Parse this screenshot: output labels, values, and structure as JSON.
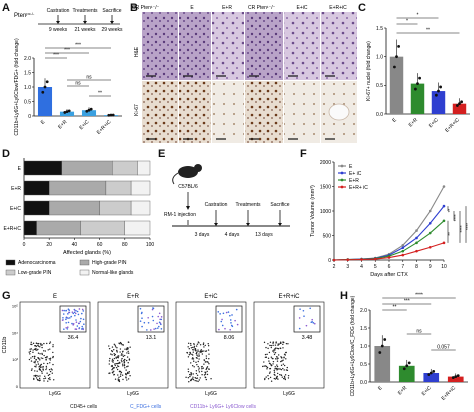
{
  "panel_labels": [
    "A",
    "B",
    "C",
    "D",
    "E",
    "F",
    "G",
    "H"
  ],
  "panelA": {
    "mouse": "Pten",
    "mouse_sup": "pc-/-",
    "timeline": [
      "Castration",
      "Treatments",
      "Sacrifice"
    ],
    "times": [
      "9 weeks",
      "21 weeks",
      "29 weeks"
    ],
    "ylabel": "CD11b+Ly6G+Ly6Clow/FDG+ (fold change)",
    "chart_data": {
      "type": "bar",
      "categories": [
        "E",
        "E+R",
        "E+iC",
        "E+R+iC"
      ],
      "values": [
        1.0,
        0.15,
        0.2,
        0.03
      ],
      "ylim": [
        0,
        2.0
      ],
      "yticks": [
        "0",
        "0.5",
        "1.0",
        "1.5",
        "2.0"
      ],
      "sig": [
        "***",
        "***",
        "***",
        "ns",
        "ns",
        "**"
      ],
      "colors": [
        "#2f6fe0",
        "#3aa0e0",
        "#3aa0e0",
        "#3aa0e0"
      ]
    }
  },
  "panelB": {
    "cols": [
      "CR Pten",
      "E",
      "E+R",
      "E+iC",
      "E+R+iC"
    ],
    "cols_header": [
      "CR Pten¹⁻/⁻",
      "E",
      "E+R",
      "CR Pten¹⁻/⁻",
      "E+iC",
      "E+R+iC"
    ],
    "rows": [
      "H&E",
      "Ki-67"
    ]
  },
  "panelC": {
    "ylabel": "Ki-67+ nuclei (fold change)",
    "chart_data": {
      "type": "bar",
      "categories": [
        "E",
        "E+R",
        "E+iC",
        "E+R+iC"
      ],
      "values": [
        1.0,
        0.53,
        0.4,
        0.18
      ],
      "ylim": [
        0,
        1.5
      ],
      "yticks": [
        "0.0",
        "0.5",
        "1.0",
        "1.5"
      ],
      "sig": [
        "*",
        "*",
        "**"
      ],
      "colors": [
        "#888888",
        "#2e8b2e",
        "#2f3fd0",
        "#d42020"
      ]
    }
  },
  "panelD": {
    "xlabel": "Affected glands (%)",
    "chart_data": {
      "type": "bar",
      "orientation": "horizontal-stacked",
      "categories": [
        "E",
        "E+R",
        "E+iC",
        "E+R+iC"
      ],
      "series": [
        {
          "name": "Adenocarcinoma",
          "values": [
            30,
            20,
            20,
            10
          ]
        },
        {
          "name": "High-grade PIN",
          "values": [
            40,
            45,
            40,
            35
          ]
        },
        {
          "name": "Low-grade PIN",
          "values": [
            20,
            20,
            25,
            35
          ]
        },
        {
          "name": "Normal-like glands",
          "values": [
            10,
            15,
            15,
            20
          ]
        }
      ],
      "xlim": [
        0,
        100
      ],
      "xticks": [
        "0",
        "20",
        "40",
        "60",
        "80",
        "100"
      ]
    },
    "legend": [
      "Adenocarcinoma",
      "High-grade PIN",
      "Low-grade PIN",
      "Normal-like glands"
    ]
  },
  "panelE": {
    "strain": "C57BL/6",
    "injection": "RM-1 injection",
    "steps": [
      "Castration",
      "Treatments",
      "Sacrifice"
    ],
    "durations": [
      "3 days",
      "4 days",
      "13 days"
    ]
  },
  "panelF": {
    "ylabel": "Tumor Volume (mm³)",
    "xlabel": "Days after CTX",
    "chart_data": {
      "type": "line",
      "x": [
        2,
        3,
        4,
        5,
        6,
        7,
        8,
        9,
        10
      ],
      "series": [
        {
          "name": "E",
          "values": [
            0,
            10,
            20,
            40,
            120,
            300,
            600,
            1000,
            1500
          ],
          "color": "#888888"
        },
        {
          "name": "E+ iC",
          "values": [
            0,
            10,
            20,
            35,
            100,
            250,
            450,
            750,
            1100
          ],
          "color": "#2f3fd0"
        },
        {
          "name": "E+R",
          "values": [
            0,
            10,
            15,
            30,
            80,
            180,
            350,
            550,
            800
          ],
          "color": "#2e8b2e"
        },
        {
          "name": "E+R+ iC",
          "values": [
            0,
            5,
            10,
            20,
            50,
            100,
            180,
            260,
            350
          ],
          "color": "#d42020"
        }
      ],
      "ylim": [
        0,
        2000
      ],
      "yticks": [
        "0",
        "500",
        "1000",
        "1500",
        "2000"
      ],
      "xticks": [
        "2",
        "3",
        "4",
        "5",
        "6",
        "7",
        "8",
        "9",
        "10"
      ],
      "sig": [
        "**",
        "****",
        "****",
        "****",
        "**"
      ]
    }
  },
  "panelG": {
    "groups": [
      "E",
      "E+R",
      "E+iC",
      "E+R+iC"
    ],
    "percents": [
      "36.4",
      "13.1",
      "8.06",
      "3.48"
    ],
    "ylabel": "CD11b",
    "xlabel": "Ly6G",
    "legend_parts": [
      "CD45+ cells",
      "C_FDG+ cells",
      "CD11b+ Ly6G+ Ly6Clow cells"
    ],
    "axis_ticks": [
      "0",
      "10³",
      "10⁴",
      "10⁵"
    ]
  },
  "panelH": {
    "ylabel": "CD11b+Ly6G+Ly6Clow/C_FDG (fold change)",
    "chart_data": {
      "type": "bar",
      "categories": [
        "E",
        "E+R",
        "E+iC",
        "E+R+iC"
      ],
      "values": [
        1.0,
        0.45,
        0.25,
        0.15
      ],
      "ylim": [
        0,
        2.0
      ],
      "yticks": [
        "0.0",
        "0.5",
        "1.0",
        "1.5",
        "2.0"
      ],
      "sig": [
        "****",
        "***",
        "**",
        "ns",
        "0.057"
      ],
      "colors": [
        "#888888",
        "#2e8b2e",
        "#2f3fd0",
        "#d42020"
      ]
    }
  }
}
